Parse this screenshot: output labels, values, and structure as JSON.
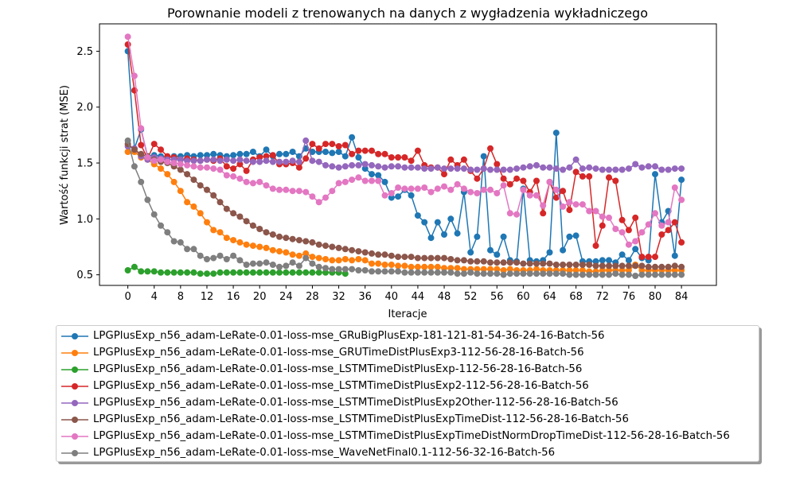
{
  "chart_data": {
    "type": "line",
    "title": "Porownanie modeli z trenowanych na danych z wygładzenia wykładniczego",
    "xlabel": "Iteracje",
    "ylabel": "Wartość funkcji strat (MSE)",
    "xlim": [
      -4.3,
      89.3
    ],
    "ylim": [
      0.405,
      2.745
    ],
    "xticks": [
      0,
      4,
      8,
      12,
      16,
      20,
      24,
      28,
      32,
      36,
      40,
      44,
      48,
      52,
      56,
      60,
      64,
      68,
      72,
      76,
      80,
      84
    ],
    "yticks": [
      0.5,
      1.0,
      1.5,
      2.0,
      2.5
    ],
    "ytick_labels": [
      "0.5",
      "1.0",
      "1.5",
      "2.0",
      "2.5"
    ],
    "grid": false,
    "legend_position": "below",
    "series": [
      {
        "name": "LPGPlusExp_n56_adam-LeRate-0.01-loss-mse_GRuBigPlusExp-181-121-81-54-36-24-16-Batch-56",
        "color": "#1f77b4",
        "values": [
          2.5,
          1.63,
          1.8,
          1.56,
          1.57,
          1.56,
          1.55,
          1.56,
          1.56,
          1.57,
          1.56,
          1.57,
          1.57,
          1.58,
          1.57,
          1.56,
          1.57,
          1.58,
          1.58,
          1.6,
          1.56,
          1.62,
          1.56,
          1.58,
          1.58,
          1.6,
          1.56,
          1.63,
          1.6,
          1.6,
          1.6,
          1.59,
          1.6,
          1.56,
          1.73,
          1.55,
          1.45,
          1.4,
          1.39,
          1.33,
          1.19,
          1.2,
          1.26,
          1.21,
          1.03,
          0.97,
          0.83,
          0.97,
          0.86,
          1.0,
          0.87,
          1.24,
          0.7,
          0.84,
          1.56,
          0.72,
          0.68,
          0.84,
          0.63,
          0.62,
          1.27,
          0.63,
          0.62,
          0.63,
          0.7,
          1.77,
          0.72,
          0.84,
          0.85,
          0.62,
          0.62,
          0.62,
          0.63,
          0.63,
          0.61,
          0.68,
          0.63,
          0.73,
          0.65,
          0.63,
          1.4,
          0.97,
          1.07,
          0.67,
          1.35
        ]
      },
      {
        "name": "LPGPlusExp_n56_adam-LeRate-0.01-loss-mse_GRUTimeDistPlusExp3-112-56-28-16-Batch-56",
        "color": "#ff7f0e",
        "values": [
          1.6,
          1.6,
          1.55,
          1.53,
          1.49,
          1.45,
          1.4,
          1.33,
          1.25,
          1.15,
          1.11,
          1.05,
          0.97,
          0.9,
          0.88,
          0.83,
          0.81,
          0.79,
          0.77,
          0.76,
          0.75,
          0.74,
          0.72,
          0.71,
          0.7,
          0.68,
          0.67,
          0.69,
          0.66,
          0.65,
          0.64,
          0.63,
          0.63,
          0.64,
          0.63,
          0.64,
          0.63,
          0.6,
          0.6,
          0.59,
          0.59,
          0.58,
          0.58,
          0.57,
          0.57,
          0.57,
          0.57,
          0.57,
          0.56,
          0.56,
          0.56,
          0.55,
          0.55,
          0.55,
          0.55,
          0.55,
          0.55,
          0.54,
          0.55,
          0.54,
          0.54,
          0.54,
          0.55,
          0.54,
          0.54,
          0.54,
          0.54,
          0.54,
          0.54,
          0.54,
          0.53,
          0.53,
          0.54,
          0.54,
          0.54,
          0.54,
          0.54,
          0.59,
          0.54,
          0.54,
          0.54,
          0.54,
          0.54,
          0.54,
          0.54
        ]
      },
      {
        "name": "LPGPlusExp_n56_adam-LeRate-0.01-loss-mse_LSTMTimeDistPlusExp-112-56-28-16-Batch-56",
        "color": "#2ca02c",
        "values": [
          0.54,
          0.57,
          0.53,
          0.53,
          0.53,
          0.52,
          0.52,
          0.52,
          0.52,
          0.52,
          0.52,
          0.51,
          0.51,
          0.51,
          0.52,
          0.52,
          0.52,
          0.52,
          0.52,
          0.52,
          0.52,
          0.52,
          0.52,
          0.52,
          0.52,
          0.52,
          0.52,
          0.52,
          0.52,
          0.52,
          0.52,
          0.52,
          0.52,
          0.51
        ]
      },
      {
        "name": "LPGPlusExp_n56_adam-LeRate-0.01-loss-mse_LSTMTimeDistPlusExp2-112-56-28-16-Batch-56",
        "color": "#d62728",
        "values": [
          2.56,
          2.15,
          1.66,
          1.54,
          1.67,
          1.62,
          1.56,
          1.55,
          1.53,
          1.54,
          1.53,
          1.52,
          1.53,
          1.52,
          1.54,
          1.47,
          1.45,
          1.49,
          1.43,
          1.53,
          1.55,
          1.56,
          1.57,
          1.49,
          1.49,
          1.5,
          1.46,
          1.54,
          1.67,
          1.63,
          1.67,
          1.67,
          1.65,
          1.66,
          1.58,
          1.61,
          1.61,
          1.61,
          1.58,
          1.58,
          1.55,
          1.55,
          1.55,
          1.52,
          1.61,
          1.48,
          1.46,
          1.46,
          1.4,
          1.53,
          1.48,
          1.53,
          1.43,
          1.36,
          1.45,
          1.63,
          1.49,
          1.36,
          1.31,
          1.36,
          1.34,
          1.24,
          1.34,
          1.05,
          1.33,
          1.19,
          1.25,
          1.08,
          1.42,
          1.38,
          1.38,
          0.76,
          0.94,
          1.37,
          1.34,
          0.99,
          0.9,
          1.01,
          0.66,
          0.66,
          0.66,
          0.86,
          0.9,
          0.97,
          0.79
        ]
      },
      {
        "name": "LPGPlusExp_n56_adam-LeRate-0.01-loss-mse_LSTMTimeDistPlusExp2Other-112-56-28-16-Batch-56",
        "color": "#9467bd",
        "values": [
          1.65,
          1.63,
          1.56,
          1.53,
          1.55,
          1.54,
          1.53,
          1.53,
          1.53,
          1.52,
          1.52,
          1.52,
          1.53,
          1.53,
          1.52,
          1.53,
          1.52,
          1.53,
          1.52,
          1.51,
          1.51,
          1.52,
          1.51,
          1.51,
          1.51,
          1.52,
          1.51,
          1.7,
          1.52,
          1.51,
          1.48,
          1.47,
          1.46,
          1.47,
          1.48,
          1.48,
          1.49,
          1.48,
          1.47,
          1.46,
          1.47,
          1.47,
          1.46,
          1.46,
          1.46,
          1.45,
          1.45,
          1.46,
          1.45,
          1.45,
          1.45,
          1.45,
          1.44,
          1.44,
          1.45,
          1.44,
          1.44,
          1.44,
          1.44,
          1.45,
          1.46,
          1.47,
          1.48,
          1.46,
          1.46,
          1.45,
          1.44,
          1.46,
          1.53,
          1.45,
          1.46,
          1.45,
          1.44,
          1.44,
          1.44,
          1.44,
          1.45,
          1.49,
          1.46,
          1.47,
          1.47,
          1.44,
          1.44,
          1.45,
          1.45
        ]
      },
      {
        "name": "LPGPlusExp_n56_adam-LeRate-0.01-loss-mse_LSTMTimeDistPlusExpTimeDist-112-56-28-16-Batch-56",
        "color": "#8c564b",
        "values": [
          1.67,
          1.62,
          1.58,
          1.56,
          1.53,
          1.51,
          1.5,
          1.47,
          1.44,
          1.4,
          1.35,
          1.3,
          1.26,
          1.21,
          1.15,
          1.09,
          1.05,
          1.02,
          0.98,
          0.94,
          0.91,
          0.88,
          0.86,
          0.84,
          0.83,
          0.82,
          0.81,
          0.8,
          0.79,
          0.77,
          0.76,
          0.75,
          0.74,
          0.73,
          0.72,
          0.71,
          0.7,
          0.69,
          0.68,
          0.68,
          0.67,
          0.66,
          0.66,
          0.66,
          0.65,
          0.65,
          0.65,
          0.65,
          0.65,
          0.64,
          0.63,
          0.63,
          0.62,
          0.62,
          0.62,
          0.61,
          0.61,
          0.61,
          0.61,
          0.61,
          0.6,
          0.6,
          0.6,
          0.6,
          0.6,
          0.59,
          0.59,
          0.59,
          0.59,
          0.59,
          0.59,
          0.58,
          0.58,
          0.58,
          0.58,
          0.58,
          0.58,
          0.58,
          0.58,
          0.57,
          0.57,
          0.57,
          0.57,
          0.58,
          0.57
        ]
      },
      {
        "name": "LPGPlusExp_n56_adam-LeRate-0.01-loss-mse_LSTMTimeDistPlusExpTimeDistNormDropTimeDist-112-56-28-16-Batch-56",
        "color": "#e377c2",
        "values": [
          2.63,
          2.28,
          1.81,
          1.55,
          1.52,
          1.53,
          1.51,
          1.5,
          1.49,
          1.48,
          1.47,
          1.46,
          1.46,
          1.45,
          1.44,
          1.39,
          1.38,
          1.36,
          1.33,
          1.32,
          1.33,
          1.3,
          1.27,
          1.26,
          1.26,
          1.25,
          1.25,
          1.24,
          1.2,
          1.15,
          1.19,
          1.25,
          1.32,
          1.33,
          1.35,
          1.37,
          1.34,
          1.34,
          1.34,
          1.21,
          1.23,
          1.28,
          1.27,
          1.27,
          1.27,
          1.28,
          1.24,
          1.27,
          1.29,
          1.26,
          1.31,
          1.27,
          1.24,
          1.23,
          1.26,
          1.26,
          1.23,
          1.3,
          1.05,
          1.04,
          1.26,
          1.21,
          1.21,
          1.12,
          1.33,
          1.26,
          1.11,
          1.15,
          1.13,
          1.13,
          1.07,
          1.07,
          1.02,
          1.01,
          0.91,
          0.88,
          0.77,
          0.8,
          0.88,
          0.95,
          1.05,
          0.94,
          0.97,
          1.28,
          1.17
        ]
      },
      {
        "name": "LPGPlusExp_n56_adam-LeRate-0.01-loss-mse_WaveNetFinal0.1-112-56-32-16-Batch-56",
        "color": "#7f7f7f",
        "values": [
          1.7,
          1.47,
          1.33,
          1.17,
          1.04,
          0.94,
          0.88,
          0.8,
          0.79,
          0.73,
          0.73,
          0.67,
          0.64,
          0.65,
          0.67,
          0.64,
          0.67,
          0.63,
          0.59,
          0.6,
          0.6,
          0.61,
          0.59,
          0.57,
          0.58,
          0.61,
          0.58,
          0.65,
          0.6,
          0.57,
          0.56,
          0.55,
          0.55,
          0.55,
          0.55,
          0.54,
          0.54,
          0.53,
          0.53,
          0.53,
          0.53,
          0.53,
          0.52,
          0.52,
          0.52,
          0.52,
          0.52,
          0.52,
          0.52,
          0.52,
          0.51,
          0.51,
          0.52,
          0.51,
          0.51,
          0.51,
          0.51,
          0.5,
          0.51,
          0.51,
          0.51,
          0.51,
          0.51,
          0.51,
          0.51,
          0.51,
          0.51,
          0.5,
          0.5,
          0.5,
          0.5,
          0.5,
          0.5,
          0.5,
          0.51,
          0.5,
          0.5,
          0.49,
          0.5,
          0.5,
          0.5,
          0.5,
          0.5,
          0.5,
          0.5
        ]
      }
    ]
  }
}
